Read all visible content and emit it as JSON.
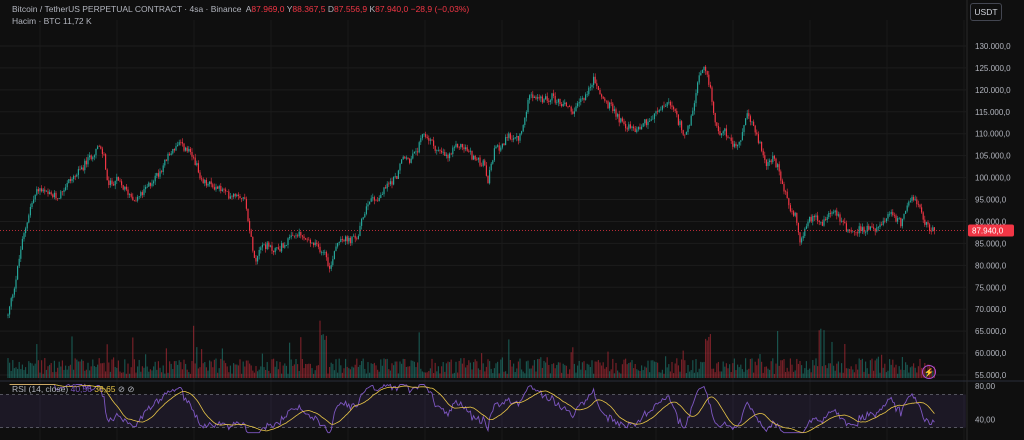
{
  "header": {
    "symbol": "Bitcoin / TetherUS PERPETUAL CONTRACT",
    "interval": "4sa",
    "exchange": "Binance",
    "open_label": "A",
    "open": "87.969,0",
    "high_label": "Y",
    "high": "88.367,5",
    "low_label": "D",
    "low": "87.556,9",
    "close_label": "K",
    "close": "87.940,0",
    "change": "−28,9 (−0,03%)",
    "volume_label": "Hacim · BTC",
    "volume_value": "11,72 K"
  },
  "currency_button": "USDT",
  "last_price_label": "87.940,0",
  "rsi": {
    "legend_name": "RSI (14, close)",
    "legend_val1": "40,56",
    "legend_val2": "36,65",
    "legend_icons": "⊘ ⊘",
    "axis_labels": [
      "80,00",
      "40,00"
    ]
  },
  "colors": {
    "up": "#26a69a",
    "down": "#f23645",
    "rsi_line": "#7e57c2",
    "rsi_ma": "#e8c547",
    "price_tag": "#f23645"
  },
  "icons": {
    "alert": "lightning-bolt-icon"
  },
  "chart_data": {
    "type": "candlestick",
    "price_axis_ticks": [
      "130.000,0",
      "125.000,0",
      "120.000,0",
      "115.000,0",
      "110.000,0",
      "105.000,0",
      "100.000,0",
      "95.000,0",
      "90.000,0",
      "85.000,0",
      "80.000,0",
      "75.000,0",
      "70.000,0",
      "65.000,0",
      "60.000,0",
      "55.000,0"
    ],
    "ylim": [
      55000,
      135000
    ],
    "last_price": 87940,
    "rsi_levels": [
      70,
      30
    ],
    "rsi_ylim": [
      20,
      85
    ],
    "price_path_anchors": [
      [
        0,
        68500
      ],
      [
        4,
        73000
      ],
      [
        8,
        77000
      ],
      [
        13,
        84000
      ],
      [
        22,
        93000
      ],
      [
        30,
        97500
      ],
      [
        40,
        96000
      ],
      [
        50,
        95500
      ],
      [
        60,
        99000
      ],
      [
        70,
        101000
      ],
      [
        80,
        104000
      ],
      [
        90,
        107000
      ],
      [
        96,
        105000
      ],
      [
        100,
        98000
      ],
      [
        108,
        99500
      ],
      [
        118,
        97000
      ],
      [
        128,
        95000
      ],
      [
        135,
        96500
      ],
      [
        145,
        99500
      ],
      [
        152,
        101500
      ],
      [
        158,
        104000
      ],
      [
        165,
        106500
      ],
      [
        172,
        107500
      ],
      [
        180,
        106000
      ],
      [
        188,
        103500
      ],
      [
        192,
        99000
      ],
      [
        200,
        98500
      ],
      [
        212,
        97500
      ],
      [
        220,
        96000
      ],
      [
        230,
        96500
      ],
      [
        238,
        94500
      ],
      [
        242,
        87000
      ],
      [
        248,
        81000
      ],
      [
        252,
        85000
      ],
      [
        258,
        84500
      ],
      [
        265,
        83500
      ],
      [
        272,
        84000
      ],
      [
        280,
        85500
      ],
      [
        290,
        87000
      ],
      [
        300,
        85500
      ],
      [
        310,
        84000
      ],
      [
        318,
        83000
      ],
      [
        322,
        78500
      ],
      [
        326,
        83500
      ],
      [
        332,
        86500
      ],
      [
        340,
        85500
      ],
      [
        350,
        86500
      ],
      [
        356,
        92000
      ],
      [
        362,
        95500
      ],
      [
        370,
        95000
      ],
      [
        380,
        98500
      ],
      [
        388,
        100000
      ],
      [
        395,
        104500
      ],
      [
        402,
        104000
      ],
      [
        410,
        106500
      ],
      [
        416,
        110000
      ],
      [
        422,
        108500
      ],
      [
        430,
        106000
      ],
      [
        440,
        104500
      ],
      [
        450,
        107500
      ],
      [
        458,
        106500
      ],
      [
        468,
        104000
      ],
      [
        476,
        103000
      ],
      [
        480,
        99000
      ],
      [
        486,
        106000
      ],
      [
        494,
        107500
      ],
      [
        502,
        109500
      ],
      [
        510,
        108500
      ],
      [
        516,
        112000
      ],
      [
        522,
        120000
      ],
      [
        528,
        118000
      ],
      [
        536,
        117500
      ],
      [
        544,
        118500
      ],
      [
        552,
        117000
      ],
      [
        560,
        116500
      ],
      [
        566,
        114500
      ],
      [
        572,
        117500
      ],
      [
        580,
        119500
      ],
      [
        586,
        122500
      ],
      [
        592,
        119000
      ],
      [
        600,
        116500
      ],
      [
        606,
        115500
      ],
      [
        612,
        113000
      ],
      [
        620,
        111500
      ],
      [
        628,
        111000
      ],
      [
        636,
        112500
      ],
      [
        644,
        113500
      ],
      [
        652,
        115500
      ],
      [
        660,
        117000
      ],
      [
        666,
        115000
      ],
      [
        672,
        112000
      ],
      [
        678,
        109500
      ],
      [
        684,
        114000
      ],
      [
        690,
        122000
      ],
      [
        696,
        124500
      ],
      [
        702,
        121000
      ],
      [
        706,
        114000
      ],
      [
        710,
        110000
      ],
      [
        716,
        111500
      ],
      [
        722,
        108000
      ],
      [
        728,
        106500
      ],
      [
        734,
        109500
      ],
      [
        740,
        115000
      ],
      [
        746,
        111000
      ],
      [
        752,
        107500
      ],
      [
        758,
        103000
      ],
      [
        764,
        104500
      ],
      [
        770,
        102000
      ],
      [
        776,
        97000
      ],
      [
        782,
        93000
      ],
      [
        788,
        91500
      ],
      [
        792,
        84500
      ],
      [
        796,
        88000
      ],
      [
        802,
        90500
      ],
      [
        808,
        91500
      ],
      [
        814,
        89500
      ],
      [
        820,
        92000
      ],
      [
        828,
        92500
      ],
      [
        834,
        90000
      ],
      [
        840,
        88000
      ],
      [
        846,
        87500
      ],
      [
        854,
        88500
      ],
      [
        862,
        88000
      ],
      [
        870,
        88500
      ],
      [
        878,
        90000
      ],
      [
        884,
        92500
      ],
      [
        888,
        90500
      ],
      [
        894,
        89500
      ],
      [
        900,
        94000
      ],
      [
        904,
        96500
      ],
      [
        910,
        93500
      ],
      [
        916,
        90000
      ],
      [
        922,
        88500
      ],
      [
        928,
        87940
      ]
    ]
  }
}
